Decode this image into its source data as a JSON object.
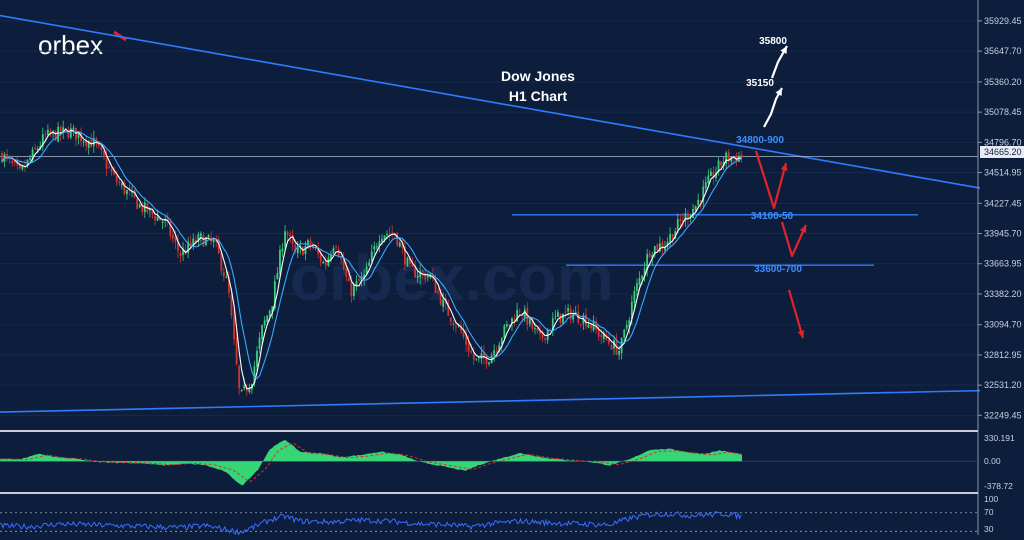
{
  "brand": {
    "logo_text": "orbex",
    "logo_accent": "#e0242a",
    "watermark": "orbex.com"
  },
  "colors": {
    "background": "#0d1e3d",
    "trendline": "#2f7bff",
    "candle_up": "#3ccf7a",
    "candle_down": "#d2332f",
    "ma_fast": "#ffffff",
    "ma_slow": "#3aa9ff",
    "macd_hist": "#39e07a",
    "macd_signal": "#d2332f",
    "rsi_line": "#3a6cff",
    "arrow_up": "#ffffff",
    "arrow_down": "#e0242a",
    "level_text": "#3d8fff"
  },
  "chart_data": [
    {
      "type": "candlestick",
      "title": "Dow Jones",
      "subtitle": "H1 Chart",
      "price_axis_ticks": [
        "35929.45",
        "35647.70",
        "35360.20",
        "35078.45",
        "34796.70",
        "34514.95",
        "34227.45",
        "33945.70",
        "33663.95",
        "33382.20",
        "33094.70",
        "32812.95",
        "32531.20",
        "32249.45"
      ],
      "ylim": [
        32150,
        36050
      ],
      "current_price": "34665.20",
      "close_path_anchors": [
        [
          0,
          34700
        ],
        [
          20,
          34500
        ],
        [
          45,
          34850
        ],
        [
          70,
          34900
        ],
        [
          95,
          34780
        ],
        [
          115,
          34450
        ],
        [
          140,
          34200
        ],
        [
          165,
          34050
        ],
        [
          180,
          33750
        ],
        [
          200,
          33900
        ],
        [
          215,
          33850
        ],
        [
          228,
          33450
        ],
        [
          240,
          32400
        ],
        [
          252,
          32600
        ],
        [
          262,
          33050
        ],
        [
          272,
          33300
        ],
        [
          285,
          34000
        ],
        [
          295,
          33750
        ],
        [
          310,
          33850
        ],
        [
          325,
          33650
        ],
        [
          335,
          33900
        ],
        [
          350,
          33400
        ],
        [
          365,
          33550
        ],
        [
          380,
          33950
        ],
        [
          395,
          33950
        ],
        [
          410,
          33600
        ],
        [
          430,
          33550
        ],
        [
          445,
          33250
        ],
        [
          460,
          33050
        ],
        [
          475,
          32750
        ],
        [
          490,
          32800
        ],
        [
          505,
          33050
        ],
        [
          520,
          33250
        ],
        [
          540,
          32950
        ],
        [
          555,
          33150
        ],
        [
          570,
          33200
        ],
        [
          585,
          33150
        ],
        [
          600,
          33000
        ],
        [
          620,
          32850
        ],
        [
          635,
          33400
        ],
        [
          650,
          33800
        ],
        [
          665,
          33850
        ],
        [
          680,
          34050
        ],
        [
          695,
          34200
        ],
        [
          710,
          34450
        ],
        [
          725,
          34650
        ],
        [
          740,
          34665
        ]
      ],
      "levels": [
        {
          "label": "34800-900",
          "price": 34850
        },
        {
          "label": "34100-50",
          "price": 34120
        },
        {
          "label": "33600-700",
          "price": 33650
        }
      ],
      "upside_targets": [
        "35150",
        "35800"
      ],
      "resistance_trendline": {
        "from": [
          0,
          35980
        ],
        "to": [
          980,
          34370
        ]
      },
      "support_trendline": {
        "from": [
          0,
          32280
        ],
        "to": [
          980,
          32480
        ]
      }
    },
    {
      "type": "area",
      "name": "MACD",
      "axis_ticks": [
        "330.191",
        "0.00",
        "-378.72"
      ],
      "ylim": [
        -420,
        370
      ],
      "anchors": [
        [
          0,
          40
        ],
        [
          20,
          30
        ],
        [
          40,
          110
        ],
        [
          55,
          60
        ],
        [
          75,
          40
        ],
        [
          95,
          -10
        ],
        [
          115,
          -20
        ],
        [
          140,
          -30
        ],
        [
          165,
          -60
        ],
        [
          185,
          -35
        ],
        [
          205,
          -55
        ],
        [
          225,
          -150
        ],
        [
          242,
          -360
        ],
        [
          258,
          -120
        ],
        [
          270,
          180
        ],
        [
          285,
          320
        ],
        [
          300,
          140
        ],
        [
          320,
          120
        ],
        [
          340,
          60
        ],
        [
          360,
          90
        ],
        [
          380,
          140
        ],
        [
          400,
          100
        ],
        [
          420,
          -10
        ],
        [
          445,
          -80
        ],
        [
          465,
          -140
        ],
        [
          480,
          -50
        ],
        [
          500,
          40
        ],
        [
          520,
          120
        ],
        [
          545,
          50
        ],
        [
          565,
          20
        ],
        [
          590,
          -10
        ],
        [
          610,
          -60
        ],
        [
          630,
          30
        ],
        [
          650,
          170
        ],
        [
          670,
          180
        ],
        [
          690,
          130
        ],
        [
          705,
          110
        ],
        [
          720,
          160
        ],
        [
          742,
          100
        ]
      ]
    },
    {
      "type": "line",
      "name": "RSI",
      "axis_ticks": [
        "100",
        "70",
        "30"
      ],
      "ylim": [
        22,
        104
      ],
      "anchors": [
        [
          0,
          42
        ],
        [
          30,
          40
        ],
        [
          60,
          46
        ],
        [
          90,
          44
        ],
        [
          120,
          42
        ],
        [
          150,
          40
        ],
        [
          180,
          38
        ],
        [
          205,
          42
        ],
        [
          225,
          34
        ],
        [
          240,
          28
        ],
        [
          255,
          40
        ],
        [
          270,
          55
        ],
        [
          285,
          62
        ],
        [
          300,
          52
        ],
        [
          330,
          50
        ],
        [
          360,
          54
        ],
        [
          390,
          52
        ],
        [
          420,
          46
        ],
        [
          450,
          44
        ],
        [
          470,
          40
        ],
        [
          490,
          46
        ],
        [
          520,
          52
        ],
        [
          550,
          48
        ],
        [
          580,
          46
        ],
        [
          610,
          44
        ],
        [
          630,
          58
        ],
        [
          650,
          66
        ],
        [
          670,
          68
        ],
        [
          690,
          64
        ],
        [
          710,
          66
        ],
        [
          725,
          68
        ],
        [
          742,
          62
        ]
      ]
    }
  ]
}
